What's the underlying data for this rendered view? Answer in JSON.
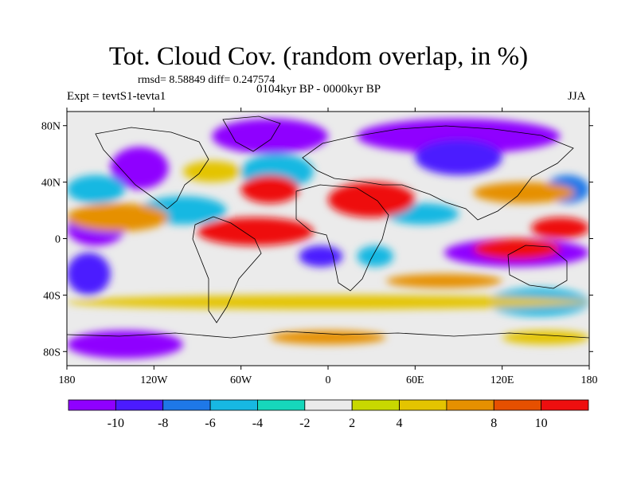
{
  "title": "Tot. Cloud Cov. (random overlap, in %)",
  "rmsd_text": "rmsd= 8.58849 diff= 0.247574",
  "expt_text": "Expt = tevtS1-tevta1",
  "period_text": "0104kyr BP - 0000kyr BP",
  "season_text": "JJA",
  "map": {
    "longitude_range": [
      -180,
      180
    ],
    "latitude_range": [
      -90,
      90
    ],
    "x_ticks": [
      {
        "value": -180,
        "label": "180"
      },
      {
        "value": -120,
        "label": "120W"
      },
      {
        "value": -60,
        "label": "60W"
      },
      {
        "value": 0,
        "label": "0"
      },
      {
        "value": 60,
        "label": "60E"
      },
      {
        "value": 120,
        "label": "120E"
      },
      {
        "value": 180,
        "label": "180"
      }
    ],
    "y_ticks": [
      {
        "value": 80,
        "label": "80N"
      },
      {
        "value": 40,
        "label": "40N"
      },
      {
        "value": 0,
        "label": "0"
      },
      {
        "value": -40,
        "label": "40S"
      },
      {
        "value": -80,
        "label": "80S"
      }
    ],
    "background_color": "#ebebeb",
    "regions": [
      {
        "level": -10,
        "lon": [
          -150,
          -110
        ],
        "lat": [
          35,
          65
        ]
      },
      {
        "level": -10,
        "lon": [
          -180,
          -140
        ],
        "lat": [
          -5,
          20
        ]
      },
      {
        "level": -8,
        "lon": [
          -180,
          -150
        ],
        "lat": [
          -40,
          -10
        ]
      },
      {
        "level": -10,
        "lon": [
          -80,
          0
        ],
        "lat": [
          60,
          85
        ]
      },
      {
        "level": -10,
        "lon": [
          20,
          160
        ],
        "lat": [
          60,
          85
        ]
      },
      {
        "level": -8,
        "lon": [
          60,
          120
        ],
        "lat": [
          45,
          70
        ]
      },
      {
        "level": -10,
        "lon": [
          80,
          180
        ],
        "lat": [
          -20,
          0
        ]
      },
      {
        "level": -8,
        "lon": [
          -20,
          10
        ],
        "lat": [
          -20,
          -5
        ]
      },
      {
        "level": -10,
        "lon": [
          -180,
          -100
        ],
        "lat": [
          -85,
          -65
        ]
      },
      {
        "level": -4,
        "lon": [
          -180,
          -140
        ],
        "lat": [
          25,
          45
        ]
      },
      {
        "level": -4,
        "lon": [
          -130,
          -70
        ],
        "lat": [
          10,
          30
        ]
      },
      {
        "level": -4,
        "lon": [
          -60,
          -10
        ],
        "lat": [
          35,
          60
        ]
      },
      {
        "level": -6,
        "lon": [
          150,
          180
        ],
        "lat": [
          25,
          45
        ]
      },
      {
        "level": -4,
        "lon": [
          40,
          90
        ],
        "lat": [
          10,
          25
        ]
      },
      {
        "level": -4,
        "lon": [
          110,
          180
        ],
        "lat": [
          -55,
          -35
        ]
      },
      {
        "level": -4,
        "lon": [
          20,
          45
        ],
        "lat": [
          -20,
          -5
        ]
      },
      {
        "level": 10,
        "lon": [
          -90,
          -10
        ],
        "lat": [
          -5,
          15
        ]
      },
      {
        "level": 10,
        "lon": [
          -60,
          -20
        ],
        "lat": [
          25,
          45
        ]
      },
      {
        "level": 10,
        "lon": [
          0,
          60
        ],
        "lat": [
          15,
          40
        ]
      },
      {
        "level": 10,
        "lon": [
          140,
          180
        ],
        "lat": [
          0,
          15
        ]
      },
      {
        "level": 8,
        "lon": [
          100,
          170
        ],
        "lat": [
          25,
          40
        ]
      },
      {
        "level": 10,
        "lon": [
          100,
          160
        ],
        "lat": [
          -15,
          0
        ]
      },
      {
        "level": 8,
        "lon": [
          -180,
          -110
        ],
        "lat": [
          5,
          25
        ]
      },
      {
        "level": 8,
        "lon": [
          40,
          120
        ],
        "lat": [
          -35,
          -25
        ]
      },
      {
        "level": 4,
        "lon": [
          -180,
          180
        ],
        "lat": [
          -50,
          -40
        ]
      },
      {
        "level": 4,
        "lon": [
          -100,
          -60
        ],
        "lat": [
          40,
          55
        ]
      },
      {
        "level": 8,
        "lon": [
          -40,
          40
        ],
        "lat": [
          -75,
          -65
        ]
      },
      {
        "level": 4,
        "lon": [
          120,
          180
        ],
        "lat": [
          -75,
          -65
        ]
      }
    ]
  },
  "colorbar": {
    "colors": [
      "#8f00ff",
      "#4b1bff",
      "#1e78e8",
      "#17b8e2",
      "#16d7bb",
      "#ebebeb",
      "#c8d800",
      "#e4c400",
      "#e69000",
      "#e65000",
      "#ee0f0f"
    ],
    "labels": [
      "-10",
      "-8",
      "-6",
      "-4",
      "-2",
      "2",
      "4",
      "8",
      "10"
    ]
  }
}
